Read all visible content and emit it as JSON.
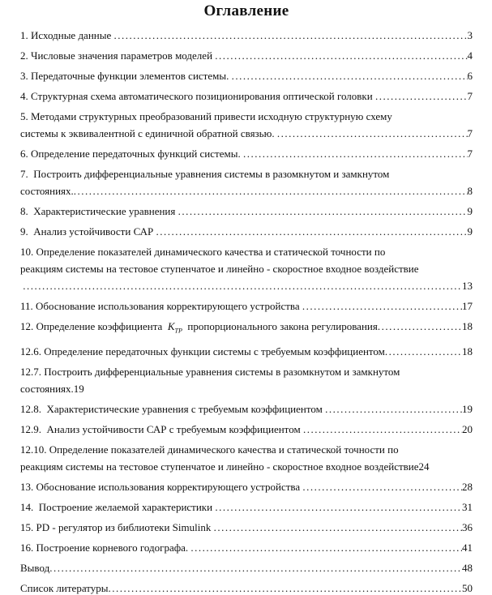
{
  "document": {
    "title": "Оглавление",
    "toc": {
      "entries": [
        {
          "lines": [
            "1. Исходные данные "
          ],
          "page": "3",
          "leader": true
        },
        {
          "lines": [
            "2. Числовые значения параметров моделей "
          ],
          "page": "4",
          "leader": true
        },
        {
          "lines": [
            "3. Передаточные функции элементов системы. "
          ],
          "page": "6",
          "leader": true
        },
        {
          "lines": [
            "4. Структурная схема автоматического позиционирования оптической головки "
          ],
          "page": "7",
          "leader": true
        },
        {
          "lines": [
            "5. Методами структурных преобразований привести исходную структурную схему",
            "системы к эквивалентной с единичной обратной связью. "
          ],
          "page": "7",
          "leader": true
        },
        {
          "lines": [
            "6. Определение передаточных функций системы. "
          ],
          "page": "7",
          "leader": true
        },
        {
          "lines": [
            "7.  Построить дифференциальные уравнения системы в разомкнутом и замкнутом",
            "состояниях."
          ],
          "page": "8",
          "leader": true
        },
        {
          "lines": [
            "8.  Характеристические уравнения "
          ],
          "page": "9",
          "leader": true
        },
        {
          "lines": [
            "9.  Анализ устойчивости САР "
          ],
          "page": "9",
          "leader": true
        },
        {
          "lines": [
            "10. Определение показателей динамического качества и статической точности по",
            "реакциям системы на тестовое ступенчатое и линейно - скоростное входное воздействие",
            " "
          ],
          "page": "13",
          "leader": true
        },
        {
          "lines": [
            "11. Обоснование использования корректирующего устройства "
          ],
          "page": "17",
          "leader": true
        },
        {
          "rich": [
            {
              "t": "12. Определение коэффициента  "
            },
            {
              "math": "K",
              "sub": "ТР"
            },
            {
              "t": "  пропорционального закона регулирования"
            }
          ],
          "page": "18",
          "leader": true
        },
        {
          "lines": [
            "12.6. Определение передаточных функции системы с требуемым коэффициентом"
          ],
          "page": "18",
          "leader": true
        },
        {
          "lines": [
            "12.7. Построить дифференциальные уравнения системы в разомкнутом и замкнутом",
            "состояниях."
          ],
          "page": "19",
          "leader": false
        },
        {
          "lines": [
            "12.8.  Характеристические уравнения с требуемым коэффициентом "
          ],
          "page": "19",
          "leader": true
        },
        {
          "lines": [
            "12.9.  Анализ устойчивости САР с требуемым коэффициентом "
          ],
          "page": "20",
          "leader": true
        },
        {
          "lines": [
            "12.10. Определение показателей динамического качества и статической точности по",
            "реакциям системы на тестовое ступенчатое и линейно - скоростное входное воздействие"
          ],
          "page": "24",
          "leader": false
        },
        {
          "lines": [
            "13. Обоснование использования корректирующего устройства "
          ],
          "page": "28",
          "leader": true
        },
        {
          "lines": [
            "14.  Построение желаемой характеристики "
          ],
          "page": "31",
          "leader": true
        },
        {
          "lines": [
            "15. PD - регулятор из библиотеки Simulink "
          ],
          "page": "36",
          "leader": true
        },
        {
          "lines": [
            "16. Построение корневого годографа. "
          ],
          "page": "41",
          "leader": true
        },
        {
          "lines": [
            "Вывод"
          ],
          "page": "48",
          "leader": true
        },
        {
          "lines": [
            "Список литературы"
          ],
          "page": "50",
          "leader": true
        }
      ]
    }
  }
}
